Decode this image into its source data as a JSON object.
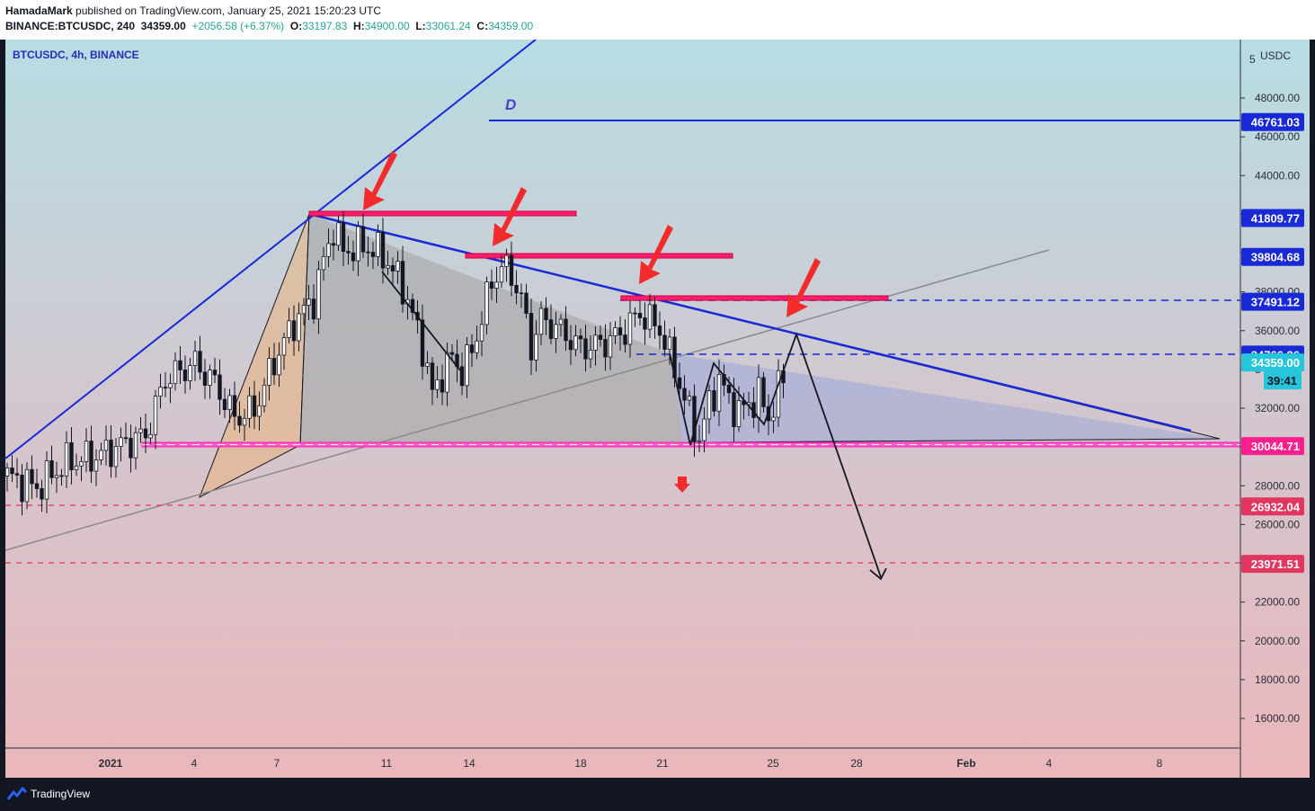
{
  "header": {
    "author": "HamadaMark",
    "published": "published on TradingView.com, January 25, 2021 15:20:23 UTC",
    "symbol": "BINANCE:BTCUSDC, 240",
    "price": "34359.00",
    "change": "+2056.58 (+6.37%)",
    "o_label": "O:",
    "o": "33197.83",
    "h_label": "H:",
    "h": "34900.00",
    "l_label": "L:",
    "l": "33061.24",
    "c_label": "C:",
    "c": "34359.00"
  },
  "legend_title": "BTCUSDC, 4h, BINANCE",
  "annotation_d": "D",
  "footer": {
    "brand": "TradingView"
  },
  "colors": {
    "frame": "#131722",
    "axis_text": "#2a2e39",
    "bull": "#ffffff",
    "bear": "#131722",
    "blue_line": "#1929d6",
    "magenta": "#ff1f6e",
    "red_arrow": "#f32b2b",
    "countdown": "#26c6da"
  },
  "chart_data": {
    "type": "line",
    "title": "BTCUSDC, 4h, BINANCE",
    "currency": "USDC",
    "y_axis_labels": [
      "48000.00",
      "46000.00",
      "44000.00",
      "42000.00",
      "40000.00",
      "38000.00",
      "36000.00",
      "34000.00",
      "32000.00",
      "30000.00",
      "28000.00",
      "26000.00",
      "24000.00",
      "22000.00",
      "20000.00",
      "18000.00",
      "16000.00"
    ],
    "x_axis_labels": [
      "2021",
      "4",
      "7",
      "11",
      "14",
      "18",
      "21",
      "25",
      "28",
      "Feb",
      "4",
      "8"
    ],
    "price_tags": [
      {
        "value": "46761.03",
        "style": "blue"
      },
      {
        "value": "41809.77",
        "style": "blue"
      },
      {
        "value": "39804.68",
        "style": "blue"
      },
      {
        "value": "37491.12",
        "style": "blue"
      },
      {
        "value": "34766.26",
        "style": "blue"
      },
      {
        "value": "34359.00",
        "style": "current"
      },
      {
        "value": "39:41",
        "style": "timer"
      },
      {
        "value": "30044.71",
        "style": "magenta"
      },
      {
        "value": "26932.04",
        "style": "red"
      },
      {
        "value": "23971.51",
        "style": "red"
      }
    ],
    "series": [
      {
        "name": "BTCUSDC",
        "approx_close_path": [
          [
            0,
            28500
          ],
          [
            6,
            27900
          ],
          [
            12,
            29200
          ],
          [
            18,
            29500
          ],
          [
            24,
            30200
          ],
          [
            28,
            30600
          ],
          [
            32,
            33500
          ],
          [
            38,
            34300
          ],
          [
            42,
            33300
          ],
          [
            46,
            31500
          ],
          [
            50,
            31900
          ],
          [
            54,
            34400
          ],
          [
            58,
            36400
          ],
          [
            62,
            37600
          ],
          [
            64,
            39600
          ],
          [
            66,
            41300
          ],
          [
            68,
            40100
          ],
          [
            72,
            40400
          ],
          [
            76,
            39900
          ],
          [
            80,
            38300
          ],
          [
            84,
            35200
          ],
          [
            86,
            32700
          ],
          [
            88,
            33800
          ],
          [
            90,
            34600
          ],
          [
            92,
            33900
          ],
          [
            94,
            34900
          ],
          [
            96,
            36700
          ],
          [
            98,
            38500
          ],
          [
            100,
            39300
          ],
          [
            102,
            38900
          ],
          [
            104,
            37600
          ],
          [
            106,
            35200
          ],
          [
            108,
            36600
          ],
          [
            112,
            36000
          ],
          [
            116,
            35100
          ],
          [
            120,
            35300
          ],
          [
            124,
            35800
          ],
          [
            128,
            36900
          ],
          [
            132,
            36100
          ],
          [
            134,
            34700
          ],
          [
            136,
            33300
          ],
          [
            138,
            31700
          ],
          [
            140,
            30400
          ],
          [
            142,
            32200
          ],
          [
            144,
            33500
          ],
          [
            146,
            32400
          ],
          [
            148,
            31800
          ],
          [
            150,
            32200
          ],
          [
            152,
            32700
          ],
          [
            154,
            31500
          ],
          [
            156,
            32900
          ],
          [
            158,
            34359
          ]
        ]
      }
    ]
  }
}
